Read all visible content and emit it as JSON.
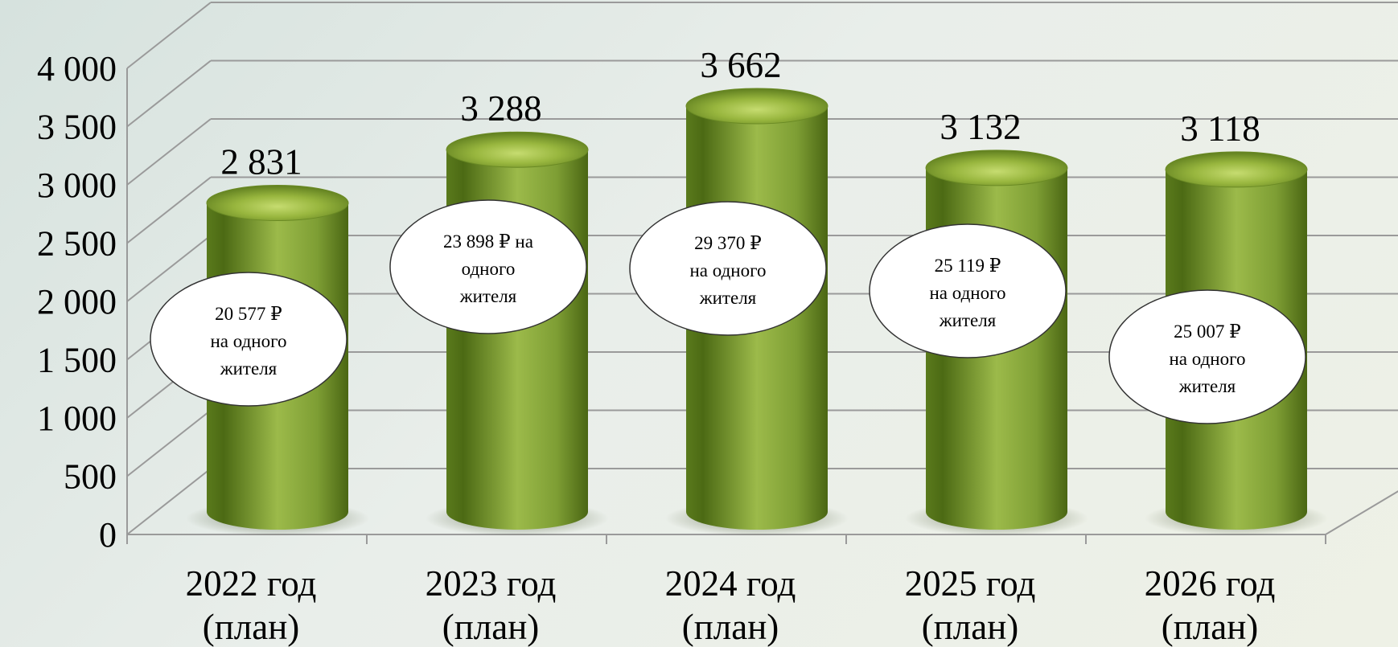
{
  "chart_data": {
    "type": "bar",
    "style": "3d-cylinder",
    "categories": [
      [
        "2022 год",
        "(план)"
      ],
      [
        "2023 год",
        "(план)"
      ],
      [
        "2024 год",
        "(план)"
      ],
      [
        "2025 год",
        "(план)"
      ],
      [
        "2026 год",
        "(план)"
      ]
    ],
    "values": [
      2831,
      3288,
      3662,
      3132,
      3118
    ],
    "value_labels": [
      "2 831",
      "3 288",
      "3 662",
      "3 132",
      "3 118"
    ],
    "per_resident_labels": [
      [
        "20 577 ₽",
        "на одного",
        "жителя"
      ],
      [
        "23 898 ₽ на",
        "одного",
        "жителя"
      ],
      [
        "29 370 ₽",
        "на одного",
        "жителя"
      ],
      [
        "25 119 ₽",
        "на одного",
        "жителя"
      ],
      [
        "25 007 ₽",
        "на одного",
        "жителя"
      ]
    ],
    "yticks": [
      "0",
      "500",
      "1 000",
      "1 500",
      "2 000",
      "2 500",
      "3 000",
      "3 500",
      "4 000"
    ],
    "ylim": [
      0,
      4000
    ],
    "grid": true,
    "legend": "none",
    "colors": {
      "bar_dark": "#4f6b18",
      "bar_mid": "#7e9e34",
      "bar_light": "#a8c456",
      "grid": "#9a9a9a",
      "bubble_fill": "#ffffff",
      "bubble_stroke": "#333333"
    }
  }
}
